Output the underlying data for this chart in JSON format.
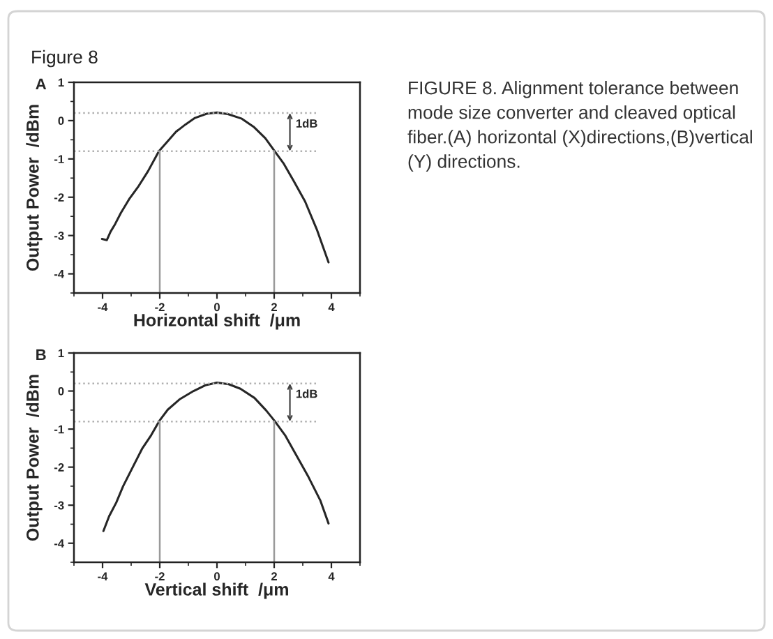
{
  "chart_data": [
    {
      "type": "line",
      "title": "A",
      "xlabel": "Horizontal shift  /μm",
      "ylabel": "Output Power  /dBm",
      "annotations": [
        {
          "text": "1dB",
          "x": 2.55,
          "y": 0.2
        },
        "Figure 8",
        "FIGURE 8. Alignment tolerance between mode size converter and cleaved optical fiber.(A) horizontal (X)directions,(B)vertical (Y) directions."
      ],
      "series": [
        {
          "color": "#262626",
          "x": [
            -4.02,
            -3.85,
            -3.72,
            -3.56,
            -3.36,
            -3.07,
            -2.74,
            -2.41,
            -2.03,
            -1.75,
            -1.43,
            -1.1,
            -0.77,
            -0.36,
            0,
            0.38,
            0.87,
            1.28,
            1.69,
            2.02,
            2.34,
            2.67,
            3.08,
            3.49,
            3.9
          ],
          "values": [
            -3.09,
            -3.12,
            -2.9,
            -2.7,
            -2.41,
            -2.05,
            -1.71,
            -1.32,
            -0.8,
            -0.56,
            -0.29,
            -0.1,
            0.07,
            0.18,
            0.21,
            0.17,
            0.05,
            -0.16,
            -0.46,
            -0.8,
            -1.13,
            -1.56,
            -2.11,
            -2.84,
            -3.7
          ]
        }
      ],
      "xlim": [
        -5,
        5
      ],
      "ylim": [
        -4.5,
        1
      ],
      "xticks": [
        -4,
        -2,
        0,
        2,
        4
      ],
      "yticks": [
        -4,
        -3,
        -2,
        -1,
        0,
        1
      ],
      "ref_lines": [
        {
          "axis": "y",
          "value": 0.2,
          "color": "#b0b0b0",
          "line_style": "dotted"
        },
        {
          "axis": "y",
          "value": -0.8,
          "color": "#b0b0b0",
          "line_style": "dotted"
        },
        {
          "axis": "x",
          "value": -2,
          "color": "#9a9a9a",
          "line_style": "solid"
        },
        {
          "axis": "x",
          "value": 2,
          "color": "#9a9a9a",
          "line_style": "solid"
        }
      ]
    },
    {
      "type": "line",
      "title": "B",
      "xlabel": "Vertical shift  /μm",
      "ylabel": "Output Power  /dBm",
      "annotations": [
        {
          "text": "1dB",
          "x": 2.55,
          "y": 0.2
        }
      ],
      "series": [
        {
          "color": "#262626",
          "x": [
            -3.97,
            -3.77,
            -3.52,
            -3.28,
            -2.95,
            -2.62,
            -2.3,
            -2.02,
            -1.72,
            -1.31,
            -0.82,
            -0.41,
            0,
            0.41,
            0.82,
            1.31,
            1.72,
            2.02,
            2.38,
            2.79,
            3.2,
            3.61,
            3.9
          ],
          "values": [
            -3.68,
            -3.29,
            -2.93,
            -2.5,
            -2.01,
            -1.52,
            -1.16,
            -0.79,
            -0.49,
            -0.22,
            0.0,
            0.15,
            0.22,
            0.18,
            0.06,
            -0.18,
            -0.51,
            -0.79,
            -1.16,
            -1.71,
            -2.26,
            -2.87,
            -3.48
          ]
        }
      ],
      "xlim": [
        -5,
        5
      ],
      "ylim": [
        -4.5,
        1
      ],
      "xticks": [
        -4,
        -2,
        0,
        2,
        4
      ],
      "yticks": [
        -4,
        -3,
        -2,
        -1,
        0,
        1
      ],
      "ref_lines": [
        {
          "axis": "y",
          "value": 0.2,
          "color": "#b0b0b0",
          "line_style": "dotted"
        },
        {
          "axis": "y",
          "value": -0.8,
          "color": "#b0b0b0",
          "line_style": "dotted"
        },
        {
          "axis": "x",
          "value": -2,
          "color": "#9a9a9a",
          "line_style": "solid"
        },
        {
          "axis": "x",
          "value": 2,
          "color": "#9a9a9a",
          "line_style": "solid"
        }
      ]
    }
  ]
}
